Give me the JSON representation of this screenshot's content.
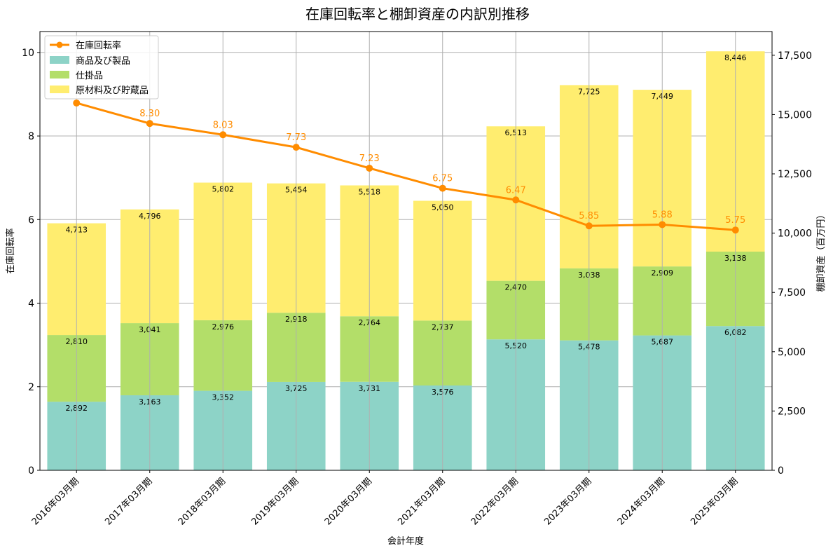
{
  "chart_data": {
    "type": "bar+line",
    "title": "在庫回転率と棚卸資産の内訳別推移",
    "xlabel": "会計年度",
    "ylabel_left": "在庫回転率",
    "ylabel_right": "棚卸資産（百万円）",
    "categories": [
      "2016年03月期",
      "2017年03月期",
      "2018年03月期",
      "2019年03月期",
      "2020年03月期",
      "2021年03月期",
      "2022年03月期",
      "2023年03月期",
      "2024年03月期",
      "2025年03月期"
    ],
    "ylim_left": [
      0,
      10.5
    ],
    "yticks_left": [
      "0",
      "2",
      "4",
      "6",
      "8",
      "10"
    ],
    "ylim_right": [
      0,
      18500
    ],
    "yticks_right": [
      "0",
      "2,500",
      "5,000",
      "7,500",
      "10,000",
      "12,500",
      "15,000",
      "17,500"
    ],
    "grid": true,
    "legend_position": "top-left",
    "line": {
      "name": "在庫回転率",
      "color": "#ff8c00",
      "values": [
        8.79,
        8.3,
        8.03,
        7.73,
        7.23,
        6.75,
        6.47,
        5.85,
        5.88,
        5.75
      ],
      "labels": [
        "",
        "8.30",
        "8.03",
        "7.73",
        "7.23",
        "6.75",
        "6.47",
        "5.85",
        "5.88",
        "5.75"
      ]
    },
    "series": [
      {
        "name": "商品及び製品",
        "color": "#8dd3c7",
        "values": [
          2892,
          3163,
          3352,
          3725,
          3731,
          3576,
          5520,
          5478,
          5687,
          6082
        ],
        "labels": [
          "2,892",
          "3,163",
          "3,352",
          "3,725",
          "3,731",
          "3,576",
          "5,520",
          "5,478",
          "5,687",
          "6,082"
        ]
      },
      {
        "name": "仕掛品",
        "color": "#b3de69",
        "values": [
          2810,
          3041,
          2976,
          2918,
          2764,
          2737,
          2470,
          3038,
          2909,
          3138
        ],
        "labels": [
          "2,810",
          "3,041",
          "2,976",
          "2,918",
          "2,764",
          "2,737",
          "2,470",
          "3,038",
          "2,909",
          "3,138"
        ]
      },
      {
        "name": "原材料及び貯蔵品",
        "color": "#ffed6f",
        "values": [
          4713,
          4796,
          5802,
          5454,
          5518,
          5050,
          6513,
          7725,
          7449,
          8446
        ],
        "labels": [
          "4,713",
          "4,796",
          "5,802",
          "5,454",
          "5,518",
          "5,050",
          "6,513",
          "7,725",
          "7,449",
          "8,446"
        ]
      }
    ]
  }
}
